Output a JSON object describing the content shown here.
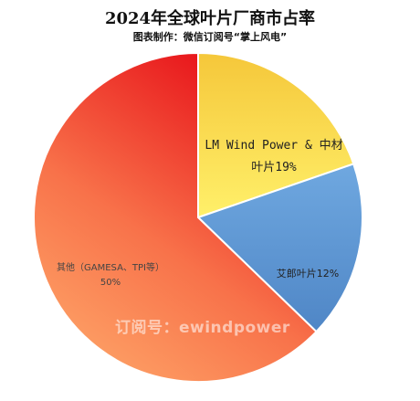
{
  "chart_data": {
    "type": "pie",
    "title": "2024年全球叶片厂商市占率",
    "subtitle": "图表制作：微信订阅号“掌上风电”",
    "slices": [
      {
        "label_lines": [
          "LM Wind Power & 中材",
          "叶片19%"
        ],
        "value": 19,
        "color_light": "#fff06a",
        "color_dark": "#f5c73a"
      },
      {
        "label_lines": [
          "艾郎叶片12%"
        ],
        "value": 12,
        "color_light": "#6fa8e0",
        "color_dark": "#4f86c6"
      },
      {
        "label_lines": [
          "其他（GAMESA、TPI等）",
          "50%"
        ],
        "value": 50,
        "color_light": "#ffaf6e",
        "color_dark": "#e8151b"
      }
    ]
  },
  "watermark": "订阅号：ewindpower"
}
